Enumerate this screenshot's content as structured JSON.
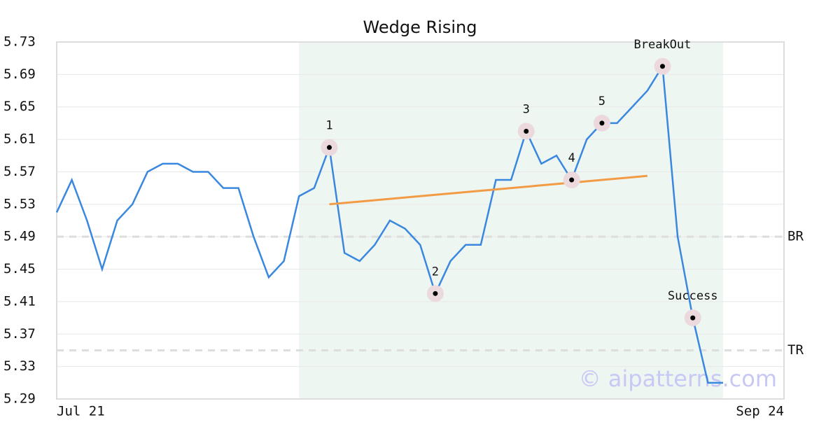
{
  "chart_data": {
    "type": "line",
    "title": "Wedge Rising",
    "categories": [
      "Jul 21",
      null,
      null,
      null,
      null,
      null,
      null,
      null,
      null,
      null,
      null,
      null,
      null,
      null,
      null,
      null,
      null,
      null,
      null,
      null,
      null,
      null,
      null,
      null,
      null,
      null,
      null,
      null,
      null,
      null,
      null,
      null,
      null,
      null,
      null,
      null,
      null,
      null,
      null,
      null,
      null,
      null,
      null,
      null,
      "Sep 24"
    ],
    "series": [
      {
        "color": "#3a87e0",
        "values": [
          5.52,
          5.56,
          5.51,
          5.45,
          5.51,
          5.53,
          5.57,
          5.58,
          5.58,
          5.57,
          5.57,
          5.55,
          5.55,
          5.49,
          5.44,
          5.46,
          5.54,
          5.55,
          5.6,
          5.47,
          5.46,
          5.48,
          5.51,
          5.5,
          5.48,
          5.42,
          5.46,
          5.48,
          5.48,
          5.56,
          5.56,
          5.62,
          5.58,
          5.59,
          5.56,
          5.61,
          5.63,
          5.63,
          5.65,
          5.67,
          5.7,
          5.49,
          5.39,
          5.31,
          5.31
        ]
      }
    ],
    "trend_line": {
      "color": "#f39a45",
      "from_index": 18,
      "to_index": 39,
      "values": [
        5.53,
        5.565
      ]
    },
    "highlight_range": [
      16,
      44
    ],
    "points": [
      {
        "label": "1",
        "index": 18
      },
      {
        "label": "2",
        "index": 25
      },
      {
        "label": "3",
        "index": 31
      },
      {
        "label": "4",
        "index": 34
      },
      {
        "label": "5",
        "index": 36
      },
      {
        "label": "BreakOut",
        "index": 40
      },
      {
        "label": "Success",
        "index": 42
      }
    ],
    "levels": [
      {
        "label": "BR",
        "value": 5.49
      },
      {
        "label": "TR",
        "value": 5.35
      }
    ],
    "ylim": [
      5.29,
      5.73
    ],
    "yticks": [
      5.29,
      5.33,
      5.37,
      5.41,
      5.45,
      5.49,
      5.53,
      5.57,
      5.61,
      5.65,
      5.69,
      5.73
    ],
    "grid": true,
    "watermark": "© aipatterns.com"
  }
}
